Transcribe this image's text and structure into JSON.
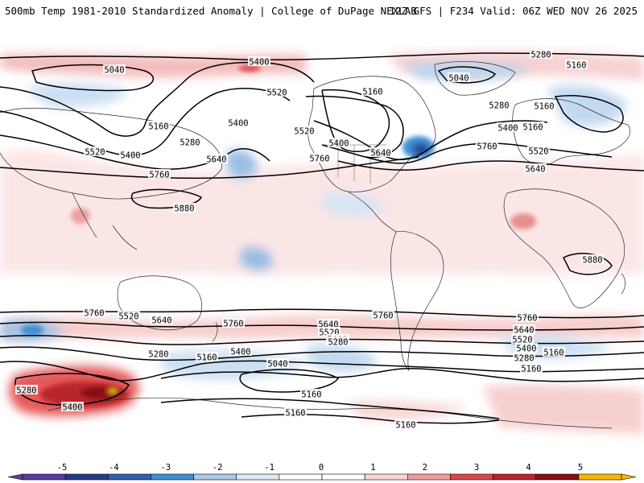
{
  "header": {
    "title": "500mb Temp 1981-2010 Standardized Anomaly | College of DuPage NEXLAB",
    "run_info": "12Z GFS | F234 Valid: 06Z WED NOV 26 2025"
  },
  "contour_labels": [
    {
      "text": "5040"
    },
    {
      "text": "5400"
    },
    {
      "text": "5520"
    },
    {
      "text": "5400"
    },
    {
      "text": "5160"
    },
    {
      "text": "5280"
    },
    {
      "text": "5520"
    },
    {
      "text": "5400"
    },
    {
      "text": "5640"
    },
    {
      "text": "5760"
    },
    {
      "text": "5880"
    },
    {
      "text": "5520"
    },
    {
      "text": "5160"
    },
    {
      "text": "5400"
    },
    {
      "text": "5640"
    },
    {
      "text": "5760"
    },
    {
      "text": "5280"
    },
    {
      "text": "5160"
    },
    {
      "text": "5040"
    },
    {
      "text": "5160"
    },
    {
      "text": "5280"
    },
    {
      "text": "5160"
    },
    {
      "text": "5400"
    },
    {
      "text": "5520"
    },
    {
      "text": "5760"
    },
    {
      "text": "5640"
    },
    {
      "text": "5880"
    },
    {
      "text": "5760"
    },
    {
      "text": "5520"
    },
    {
      "text": "5640"
    },
    {
      "text": "5760"
    },
    {
      "text": "5760"
    },
    {
      "text": "5640"
    },
    {
      "text": "5520"
    },
    {
      "text": "5400"
    },
    {
      "text": "5280"
    },
    {
      "text": "5160"
    },
    {
      "text": "5040"
    },
    {
      "text": "5400"
    },
    {
      "text": "5160"
    },
    {
      "text": "5280"
    },
    {
      "text": "5760"
    },
    {
      "text": "5640"
    },
    {
      "text": "5520"
    },
    {
      "text": "5400"
    },
    {
      "text": "5280"
    },
    {
      "text": "5160"
    },
    {
      "text": "5280"
    },
    {
      "text": "5400"
    },
    {
      "text": "5160"
    },
    {
      "text": "5160"
    },
    {
      "text": "5160"
    }
  ],
  "colorbar": {
    "ticks": [
      "-5",
      "-4",
      "-3",
      "-2",
      "-1",
      "0",
      "1",
      "2",
      "3",
      "4",
      "5"
    ],
    "colors": [
      "#5a3f9e",
      "#253c85",
      "#2f5fae",
      "#3f8fd2",
      "#a9cbe9",
      "#dce9f6",
      "#ffffff",
      "#ffffff",
      "#f9d6d6",
      "#ef9d9d",
      "#d9474b",
      "#b8262b",
      "#8a0d16",
      "#f5b800"
    ]
  }
}
